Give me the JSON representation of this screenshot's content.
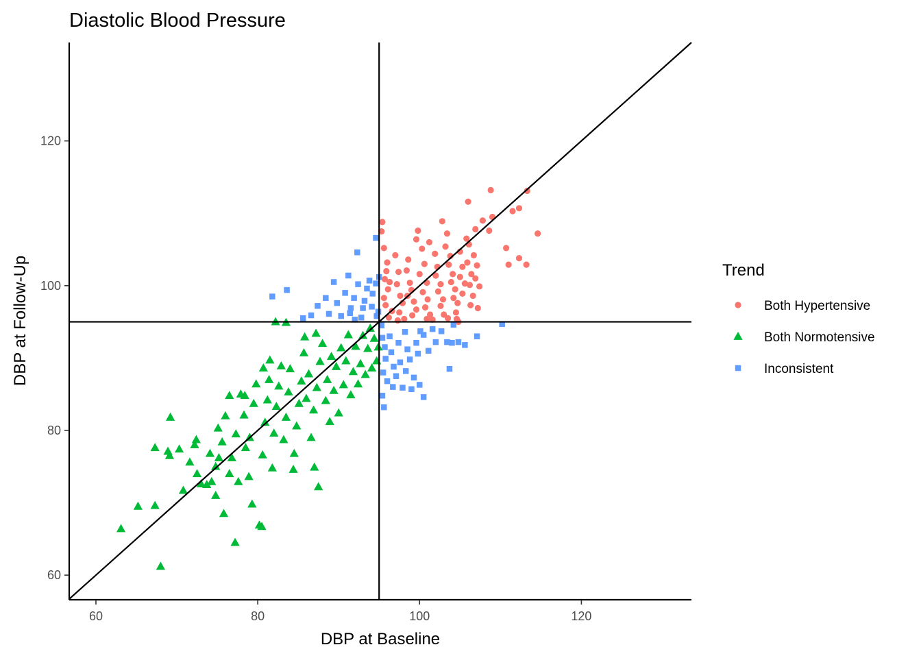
{
  "chart_data": {
    "type": "scatter",
    "title": "Diastolic Blood Pressure",
    "xlabel": "DBP at Baseline",
    "ylabel": "DBP at Follow-Up",
    "xlim": [
      56.7,
      133.6
    ],
    "ylim": [
      56.6,
      133.6
    ],
    "xticks": [
      60,
      80,
      100,
      120
    ],
    "yticks": [
      60,
      80,
      100,
      120
    ],
    "reference_lines": {
      "vertical_x": 95,
      "horizontal_y": 95,
      "diagonal": "y = x"
    },
    "grid": false,
    "legend": {
      "title": "Trend",
      "position": "right",
      "entries": [
        {
          "label": "Both Hypertensive",
          "color": "#F8766D",
          "shape": "circle"
        },
        {
          "label": "Both Normotensive",
          "color": "#00BA38",
          "shape": "triangle"
        },
        {
          "label": "Inconsistent",
          "color": "#619CFF",
          "shape": "square"
        }
      ]
    },
    "series": [
      {
        "name": "Both Hypertensive",
        "color": "#F8766D",
        "shape": "circle",
        "points": [
          [
            95.4,
            108.8
          ],
          [
            95.3,
            107.5
          ],
          [
            95.6,
            105.2
          ],
          [
            96.0,
            103.2
          ],
          [
            95.9,
            102.0
          ],
          [
            95.7,
            100.9
          ],
          [
            96.3,
            100.5
          ],
          [
            96.1,
            99.5
          ],
          [
            95.6,
            98.3
          ],
          [
            95.8,
            97.3
          ],
          [
            96.6,
            96.5
          ],
          [
            96.2,
            95.6
          ],
          [
            97.0,
            104.2
          ],
          [
            97.4,
            101.9
          ],
          [
            97.2,
            100.2
          ],
          [
            97.6,
            98.6
          ],
          [
            97.9,
            97.6
          ],
          [
            97.5,
            96.3
          ],
          [
            98.1,
            95.4
          ],
          [
            98.6,
            103.6
          ],
          [
            98.4,
            102.1
          ],
          [
            98.8,
            100.4
          ],
          [
            99.0,
            99.4
          ],
          [
            98.5,
            98.6
          ],
          [
            99.3,
            97.8
          ],
          [
            99.6,
            96.7
          ],
          [
            99.1,
            95.9
          ],
          [
            99.8,
            107.6
          ],
          [
            99.6,
            106.4
          ],
          [
            100.3,
            105.1
          ],
          [
            100.6,
            103.0
          ],
          [
            100.0,
            101.6
          ],
          [
            100.9,
            100.4
          ],
          [
            100.4,
            99.1
          ],
          [
            101.0,
            98.1
          ],
          [
            100.7,
            97.0
          ],
          [
            101.3,
            96.0
          ],
          [
            101.6,
            95.3
          ],
          [
            101.2,
            106.0
          ],
          [
            101.9,
            104.4
          ],
          [
            102.2,
            102.6
          ],
          [
            102.0,
            101.4
          ],
          [
            102.6,
            100.2
          ],
          [
            102.3,
            99.2
          ],
          [
            102.9,
            98.1
          ],
          [
            102.6,
            97.2
          ],
          [
            103.0,
            96.0
          ],
          [
            103.5,
            95.5
          ],
          [
            102.8,
            108.9
          ],
          [
            103.4,
            107.2
          ],
          [
            103.2,
            105.4
          ],
          [
            103.8,
            104.1
          ],
          [
            103.6,
            102.9
          ],
          [
            104.1,
            101.6
          ],
          [
            103.9,
            100.5
          ],
          [
            104.4,
            99.5
          ],
          [
            104.2,
            98.3
          ],
          [
            104.7,
            97.6
          ],
          [
            104.5,
            96.3
          ],
          [
            105.0,
            104.7
          ],
          [
            105.3,
            102.6
          ],
          [
            105.0,
            101.2
          ],
          [
            105.6,
            100.3
          ],
          [
            105.3,
            98.9
          ],
          [
            105.8,
            106.5
          ],
          [
            106.1,
            105.7
          ],
          [
            105.9,
            103.2
          ],
          [
            106.4,
            101.6
          ],
          [
            106.2,
            100.1
          ],
          [
            106.6,
            98.6
          ],
          [
            106.3,
            97.3
          ],
          [
            106.0,
            111.6
          ],
          [
            106.9,
            107.8
          ],
          [
            106.7,
            104.2
          ],
          [
            107.1,
            102.8
          ],
          [
            106.9,
            101.0
          ],
          [
            107.4,
            99.9
          ],
          [
            107.2,
            96.9
          ],
          [
            107.8,
            109.0
          ],
          [
            108.6,
            107.6
          ],
          [
            108.8,
            113.2
          ],
          [
            109.0,
            109.5
          ],
          [
            110.7,
            105.2
          ],
          [
            111.0,
            102.9
          ],
          [
            111.5,
            110.3
          ],
          [
            112.3,
            110.7
          ],
          [
            113.3,
            113.1
          ],
          [
            112.3,
            103.8
          ],
          [
            113.2,
            102.9
          ],
          [
            114.6,
            107.2
          ],
          [
            104.6,
            95.4
          ],
          [
            104.8,
            95.0
          ],
          [
            100.9,
            95.4
          ],
          [
            97.3,
            95.2
          ]
        ]
      },
      {
        "name": "Both Normotensive",
        "color": "#00BA38",
        "shape": "triangle",
        "points": [
          [
            63.1,
            66.4
          ],
          [
            65.2,
            69.5
          ],
          [
            67.3,
            69.6
          ],
          [
            68.0,
            61.2
          ],
          [
            67.3,
            77.6
          ],
          [
            68.9,
            77.1
          ],
          [
            69.1,
            76.5
          ],
          [
            69.2,
            81.8
          ],
          [
            70.3,
            77.4
          ],
          [
            70.8,
            71.7
          ],
          [
            71.6,
            75.6
          ],
          [
            72.2,
            78.0
          ],
          [
            72.4,
            78.7
          ],
          [
            72.5,
            74.0
          ],
          [
            73.0,
            72.6
          ],
          [
            73.7,
            72.5
          ],
          [
            74.3,
            72.9
          ],
          [
            74.8,
            71.0
          ],
          [
            74.1,
            76.8
          ],
          [
            74.8,
            75.0
          ],
          [
            75.2,
            76.2
          ],
          [
            75.6,
            78.4
          ],
          [
            75.8,
            68.5
          ],
          [
            75.1,
            80.3
          ],
          [
            76.0,
            82.0
          ],
          [
            76.5,
            84.8
          ],
          [
            76.8,
            76.2
          ],
          [
            76.5,
            74.0
          ],
          [
            77.2,
            64.5
          ],
          [
            77.6,
            72.9
          ],
          [
            77.3,
            79.5
          ],
          [
            77.9,
            85.0
          ],
          [
            78.3,
            82.1
          ],
          [
            78.5,
            77.6
          ],
          [
            78.9,
            73.6
          ],
          [
            79.3,
            69.8
          ],
          [
            79.0,
            79.0
          ],
          [
            79.5,
            83.7
          ],
          [
            79.8,
            86.4
          ],
          [
            80.2,
            66.9
          ],
          [
            80.5,
            66.7
          ],
          [
            80.6,
            76.6
          ],
          [
            80.9,
            81.1
          ],
          [
            81.2,
            84.2
          ],
          [
            81.4,
            87.0
          ],
          [
            81.8,
            74.8
          ],
          [
            82.0,
            79.6
          ],
          [
            82.3,
            83.3
          ],
          [
            82.6,
            86.1
          ],
          [
            82.9,
            88.9
          ],
          [
            83.2,
            78.7
          ],
          [
            83.5,
            81.8
          ],
          [
            83.8,
            85.3
          ],
          [
            84.0,
            88.5
          ],
          [
            84.4,
            74.6
          ],
          [
            84.5,
            76.8
          ],
          [
            84.8,
            80.6
          ],
          [
            85.1,
            83.7
          ],
          [
            85.4,
            86.8
          ],
          [
            85.7,
            90.7
          ],
          [
            86.0,
            84.4
          ],
          [
            86.3,
            87.8
          ],
          [
            86.6,
            79.0
          ],
          [
            86.9,
            82.8
          ],
          [
            87.0,
            74.9
          ],
          [
            87.3,
            85.9
          ],
          [
            87.5,
            72.2
          ],
          [
            87.7,
            89.5
          ],
          [
            88.0,
            92.0
          ],
          [
            88.4,
            84.1
          ],
          [
            88.6,
            87.0
          ],
          [
            88.9,
            81.2
          ],
          [
            89.1,
            90.2
          ],
          [
            89.4,
            85.5
          ],
          [
            89.7,
            88.8
          ],
          [
            90.0,
            82.4
          ],
          [
            90.3,
            91.4
          ],
          [
            90.6,
            86.3
          ],
          [
            90.9,
            89.6
          ],
          [
            91.2,
            93.2
          ],
          [
            91.5,
            84.9
          ],
          [
            91.8,
            88.1
          ],
          [
            92.1,
            91.6
          ],
          [
            92.4,
            86.4
          ],
          [
            92.7,
            89.2
          ],
          [
            93.0,
            93.1
          ],
          [
            93.3,
            87.7
          ],
          [
            93.6,
            91.3
          ],
          [
            93.9,
            94.1
          ],
          [
            94.1,
            88.6
          ],
          [
            94.4,
            92.7
          ],
          [
            94.7,
            89.6
          ],
          [
            94.9,
            91.5
          ],
          [
            82.2,
            95.0
          ],
          [
            83.5,
            94.9
          ],
          [
            85.8,
            92.9
          ],
          [
            87.2,
            93.4
          ],
          [
            78.4,
            84.8
          ],
          [
            80.7,
            88.6
          ],
          [
            81.5,
            89.7
          ]
        ]
      },
      {
        "name": "Inconsistent",
        "color": "#619CFF",
        "shape": "square",
        "points": [
          [
            81.8,
            98.5
          ],
          [
            83.6,
            99.4
          ],
          [
            85.6,
            95.5
          ],
          [
            86.6,
            95.9
          ],
          [
            87.4,
            97.2
          ],
          [
            88.4,
            98.3
          ],
          [
            88.8,
            96.1
          ],
          [
            89.4,
            100.5
          ],
          [
            89.8,
            97.6
          ],
          [
            90.3,
            95.8
          ],
          [
            90.8,
            99.0
          ],
          [
            91.2,
            101.4
          ],
          [
            91.5,
            96.9
          ],
          [
            91.9,
            98.3
          ],
          [
            92.3,
            104.6
          ],
          [
            92.4,
            100.2
          ],
          [
            92.8,
            95.6
          ],
          [
            93.2,
            97.9
          ],
          [
            93.5,
            99.6
          ],
          [
            93.8,
            100.7
          ],
          [
            94.1,
            97.1
          ],
          [
            94.2,
            98.9
          ],
          [
            94.6,
            106.6
          ],
          [
            94.7,
            95.8
          ],
          [
            94.9,
            96.4
          ],
          [
            95.0,
            101.2
          ],
          [
            94.6,
            100.3
          ],
          [
            93.0,
            96.9
          ],
          [
            92.0,
            95.3
          ],
          [
            91.4,
            96.2
          ],
          [
            95.3,
            94.5
          ],
          [
            95.4,
            92.8
          ],
          [
            95.7,
            91.5
          ],
          [
            95.8,
            89.9
          ],
          [
            95.5,
            88.0
          ],
          [
            95.4,
            84.8
          ],
          [
            96.0,
            86.8
          ],
          [
            96.3,
            93.0
          ],
          [
            96.5,
            90.8
          ],
          [
            96.8,
            88.8
          ],
          [
            97.1,
            87.5
          ],
          [
            97.4,
            92.1
          ],
          [
            97.6,
            89.4
          ],
          [
            97.9,
            85.9
          ],
          [
            98.2,
            93.6
          ],
          [
            98.5,
            91.2
          ],
          [
            98.8,
            89.8
          ],
          [
            99.0,
            85.7
          ],
          [
            99.3,
            87.3
          ],
          [
            99.6,
            92.1
          ],
          [
            100.0,
            86.3
          ],
          [
            100.5,
            93.2
          ],
          [
            101.1,
            91.0
          ],
          [
            101.6,
            94.0
          ],
          [
            102.0,
            92.2
          ],
          [
            103.4,
            92.2
          ],
          [
            104.0,
            92.1
          ],
          [
            104.8,
            92.2
          ],
          [
            105.6,
            91.8
          ],
          [
            107.1,
            93.0
          ],
          [
            110.2,
            94.7
          ],
          [
            103.7,
            88.5
          ],
          [
            104.2,
            94.6
          ],
          [
            102.7,
            93.7
          ],
          [
            95.6,
            83.2
          ],
          [
            100.5,
            84.6
          ],
          [
            100.1,
            93.7
          ],
          [
            96.7,
            86.0
          ],
          [
            99.8,
            90.6
          ],
          [
            98.3,
            88.2
          ]
        ]
      }
    ]
  }
}
